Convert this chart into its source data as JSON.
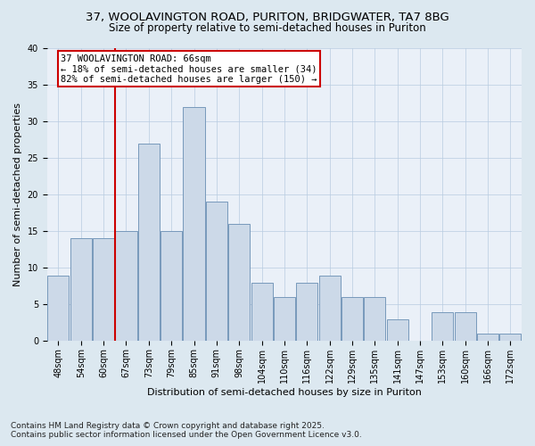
{
  "title_line1": "37, WOOLAVINGTON ROAD, PURITON, BRIDGWATER, TA7 8BG",
  "title_line2": "Size of property relative to semi-detached houses in Puriton",
  "xlabel": "Distribution of semi-detached houses by size in Puriton",
  "ylabel": "Number of semi-detached properties",
  "categories": [
    "48sqm",
    "54sqm",
    "60sqm",
    "67sqm",
    "73sqm",
    "79sqm",
    "85sqm",
    "91sqm",
    "98sqm",
    "104sqm",
    "110sqm",
    "116sqm",
    "122sqm",
    "129sqm",
    "135sqm",
    "141sqm",
    "147sqm",
    "153sqm",
    "160sqm",
    "166sqm",
    "172sqm"
  ],
  "values": [
    9,
    14,
    14,
    15,
    27,
    15,
    32,
    19,
    16,
    8,
    6,
    8,
    9,
    6,
    6,
    3,
    0,
    4,
    4,
    1,
    1
  ],
  "bar_color": "#ccd9e8",
  "bar_edge_color": "#7799bb",
  "vline_index": 3,
  "annotation_title": "37 WOOLAVINGTON ROAD: 66sqm",
  "annotation_line1": "← 18% of semi-detached houses are smaller (34)",
  "annotation_line2": "82% of semi-detached houses are larger (150) →",
  "annotation_box_facecolor": "#ffffff",
  "annotation_box_edgecolor": "#cc0000",
  "ylim": [
    0,
    40
  ],
  "yticks": [
    0,
    5,
    10,
    15,
    20,
    25,
    30,
    35,
    40
  ],
  "footnote_line1": "Contains HM Land Registry data © Crown copyright and database right 2025.",
  "footnote_line2": "Contains public sector information licensed under the Open Government Licence v3.0.",
  "bg_color": "#dce8f0",
  "plot_bg_color": "#eaf0f8",
  "title_fontsize": 9.5,
  "subtitle_fontsize": 8.5,
  "axis_label_fontsize": 8,
  "tick_fontsize": 7,
  "annotation_fontsize": 7.5,
  "footnote_fontsize": 6.5,
  "grid_color": "#b8cce0",
  "vline_color": "#cc0000"
}
